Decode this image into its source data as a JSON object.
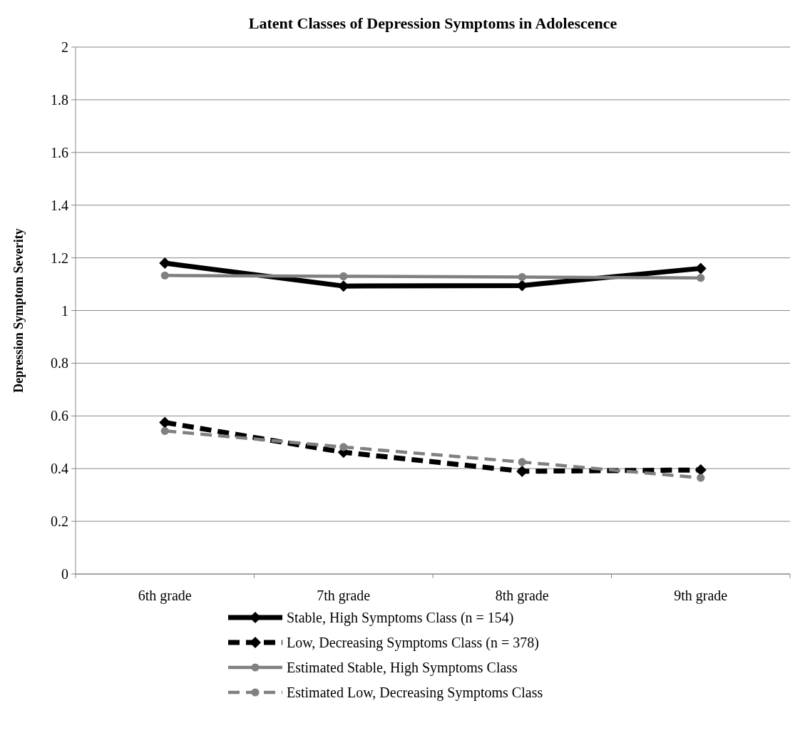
{
  "chart_data": {
    "type": "line",
    "title": "Latent Classes of Depression Symptoms in Adolescence",
    "ylabel": "Depression Symptom Severity",
    "categories": [
      "6th grade",
      "7th grade",
      "8th grade",
      "9th grade"
    ],
    "series": [
      {
        "name": "Stable, High Symptoms Class (n = 154)",
        "color": "#000000",
        "values": [
          1.18,
          1.093,
          1.095,
          1.16
        ],
        "marker": "diamond",
        "line_style": "solid"
      },
      {
        "name": "Low, Decreasing Symptoms Class (n = 378)",
        "color": "#000000",
        "values": [
          0.575,
          0.462,
          0.39,
          0.395
        ],
        "marker": "diamond",
        "line_style": "dashed"
      },
      {
        "name": "Estimated Stable, High Symptoms Class",
        "color": "#808080",
        "values": [
          1.133,
          1.13,
          1.127,
          1.124
        ],
        "marker": "circle",
        "line_style": "solid"
      },
      {
        "name": "Estimated Low, Decreasing Symptoms Class",
        "color": "#808080",
        "values": [
          0.543,
          0.482,
          0.425,
          0.365
        ],
        "marker": "circle",
        "line_style": "dashed"
      }
    ],
    "ylim": [
      0,
      2
    ],
    "yticks": [
      0,
      0.2,
      0.4,
      0.6,
      0.8,
      1,
      1.2,
      1.4,
      1.6,
      1.8,
      2
    ],
    "grid": "y",
    "legend": "bottom"
  }
}
